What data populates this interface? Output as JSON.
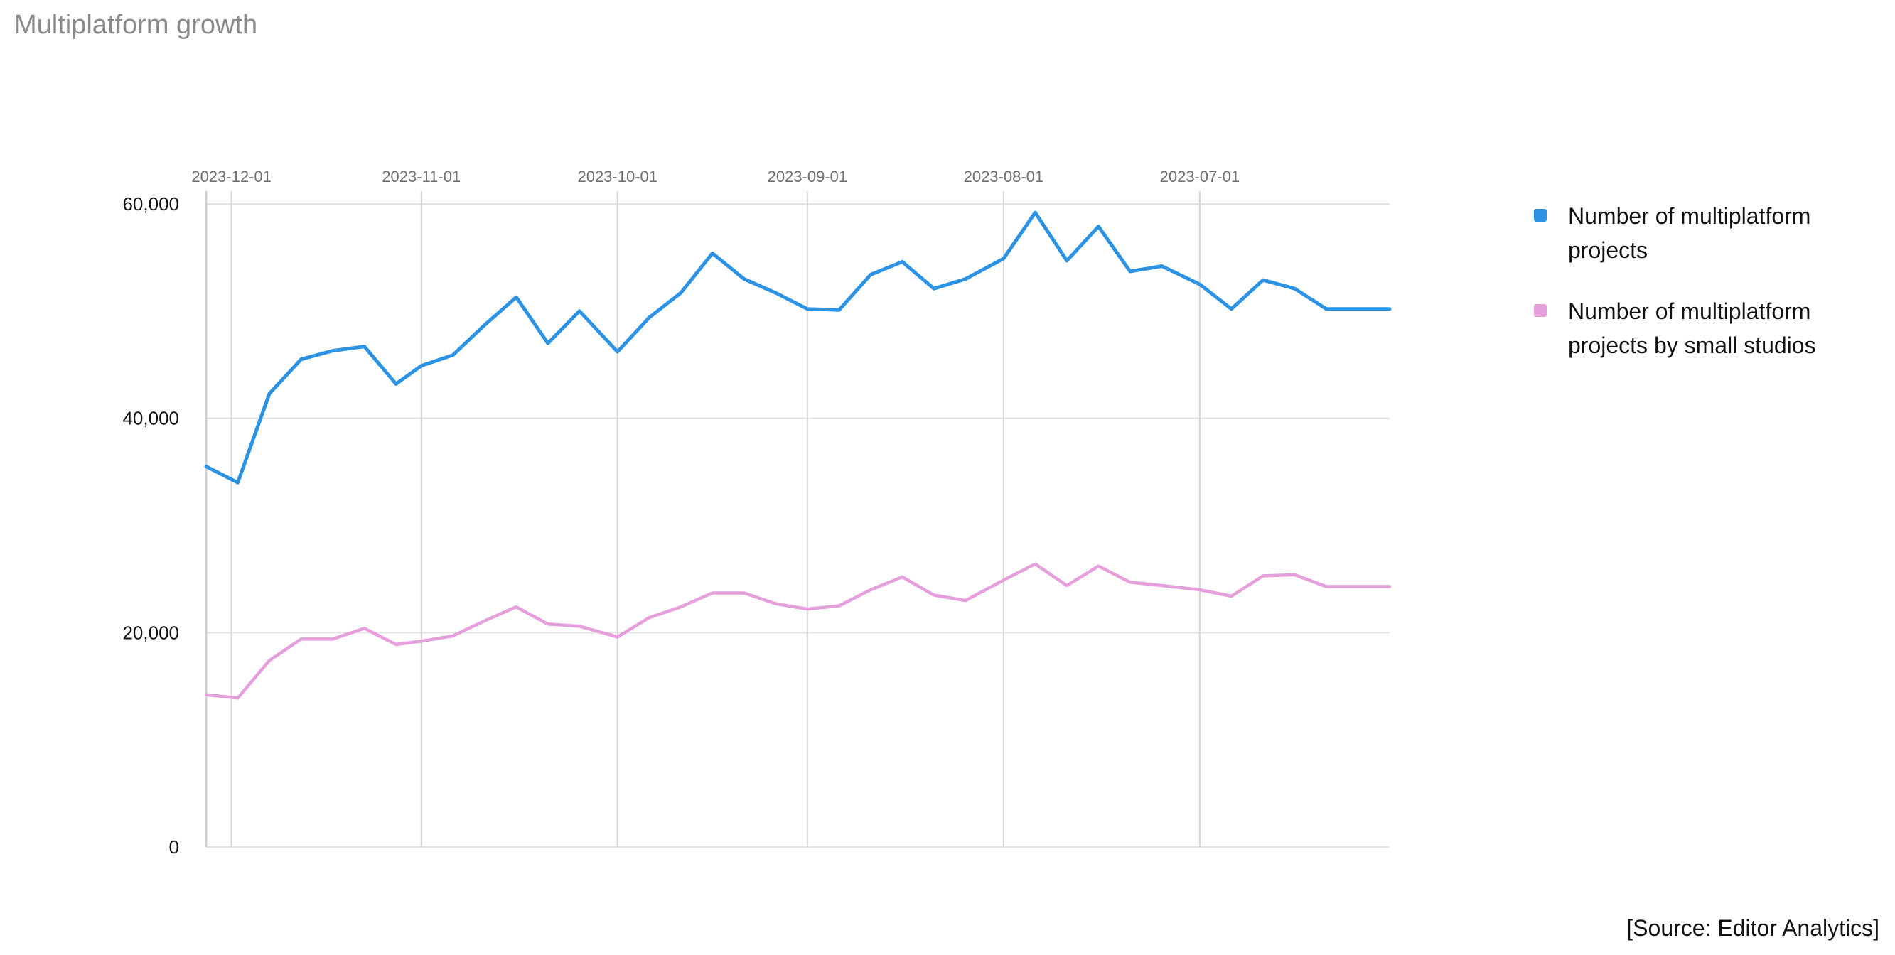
{
  "title": "Multiplatform growth",
  "source": "[Source: Editor Analytics]",
  "chart_data": {
    "type": "line",
    "title": "Multiplatform growth",
    "x_axis_position": "top",
    "x_order": "descending",
    "x_range": [
      "2023-12-05",
      "2023-06-01"
    ],
    "x_ticks": [
      "2023-12-01",
      "2023-11-01",
      "2023-10-01",
      "2023-09-01",
      "2023-08-01",
      "2023-07-01"
    ],
    "ylim": [
      0,
      60000
    ],
    "y_ticks": [
      0,
      20000,
      40000,
      60000
    ],
    "y_tick_labels": [
      "0",
      "20,000",
      "40,000",
      "60,000"
    ],
    "grid": true,
    "legend_position": "right",
    "x": [
      "2023-12-05",
      "2023-11-30",
      "2023-11-25",
      "2023-11-20",
      "2023-11-15",
      "2023-11-10",
      "2023-11-05",
      "2023-11-01",
      "2023-10-27",
      "2023-10-22",
      "2023-10-17",
      "2023-10-12",
      "2023-10-07",
      "2023-10-01",
      "2023-09-26",
      "2023-09-21",
      "2023-09-16",
      "2023-09-11",
      "2023-09-06",
      "2023-09-01",
      "2023-08-27",
      "2023-08-22",
      "2023-08-17",
      "2023-08-12",
      "2023-08-07",
      "2023-08-01",
      "2023-07-27",
      "2023-07-22",
      "2023-07-17",
      "2023-07-12",
      "2023-07-07",
      "2023-07-01",
      "2023-06-26",
      "2023-06-21",
      "2023-06-16",
      "2023-06-11",
      "2023-06-01"
    ],
    "series": [
      {
        "name": "Number of multiplatform projects",
        "color": "#2b92e4",
        "values": [
          35500,
          34000,
          42300,
          45500,
          46300,
          46700,
          43200,
          44900,
          45900,
          48700,
          51300,
          47000,
          50000,
          46200,
          49400,
          51700,
          55400,
          53000,
          51700,
          50200,
          50100,
          53400,
          54600,
          52100,
          53000,
          54900,
          59200,
          54700,
          57900,
          53700,
          54200,
          52500,
          50200,
          52900,
          52100,
          50200,
          50200
        ]
      },
      {
        "name": "Number of multiplatform projects by small studios",
        "color": "#e49fdc",
        "values": [
          14200,
          13900,
          17400,
          19400,
          19400,
          20400,
          18900,
          19200,
          19700,
          21100,
          22400,
          20800,
          20600,
          19600,
          21400,
          22400,
          23700,
          23700,
          22700,
          22200,
          22500,
          24000,
          25200,
          23500,
          23000,
          24900,
          26400,
          24400,
          26200,
          24700,
          24400,
          24000,
          23400,
          25300,
          25400,
          24300,
          24300
        ]
      }
    ]
  }
}
